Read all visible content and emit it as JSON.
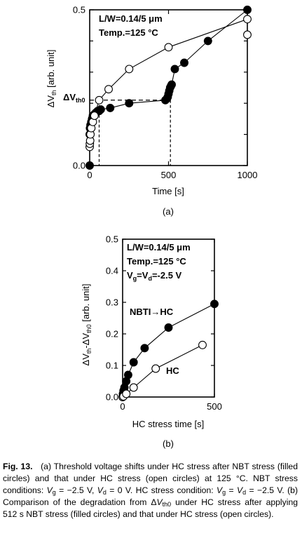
{
  "chart_data": [
    {
      "type": "scatter",
      "panel_label": "(a)",
      "xlabel": "Time [s]",
      "ylabel": "ΔV th [arb. unit]",
      "ylabel_main": "ΔV",
      "ylabel_sub": "th",
      "ylabel_rest": " [arb. unit]",
      "xlim": [
        0,
        1000
      ],
      "ylim": [
        0.0,
        0.5
      ],
      "xticks": [
        "0",
        "500",
        "1000"
      ],
      "yticks": [
        "0.0",
        "0.5"
      ],
      "annotation_line1": "L/W=0.14/5 μm",
      "annotation_line2": "Temp.=125 °C",
      "ref_label_main": "ΔV",
      "ref_label_sub": "th0",
      "ref_level": 0.21,
      "ref_x_open": 60,
      "ref_x_filled": 512,
      "series": [
        {
          "name": "filled",
          "marker": "filled",
          "x": [
            0,
            0,
            2,
            5,
            10,
            15,
            20,
            30,
            40,
            50,
            60,
            70,
            130,
            250,
            480,
            490,
            495,
            500,
            505,
            510,
            515,
            520,
            540,
            600,
            750,
            1000
          ],
          "y": [
            0,
            0.1,
            0.12,
            0.13,
            0.14,
            0.15,
            0.16,
            0.165,
            0.17,
            0.175,
            0.175,
            0.18,
            0.185,
            0.2,
            0.21,
            0.215,
            0.22,
            0.23,
            0.24,
            0.25,
            0.255,
            0.26,
            0.31,
            0.33,
            0.4,
            0.5
          ]
        },
        {
          "name": "open",
          "marker": "open",
          "x": [
            0,
            1,
            3,
            5,
            10,
            20,
            30,
            60,
            120,
            250,
            500,
            1000,
            1000
          ],
          "y": [
            0.06,
            0.07,
            0.08,
            0.1,
            0.12,
            0.14,
            0.16,
            0.21,
            0.245,
            0.31,
            0.38,
            0.47,
            0.42
          ]
        }
      ]
    },
    {
      "type": "scatter",
      "panel_label": "(b)",
      "xlabel": "HC stress time [s]",
      "ylabel": "ΔV th-ΔV th0 [arb. unit]",
      "ylabel_p1": "ΔV",
      "ylabel_s1": "th",
      "ylabel_p2": "-ΔV",
      "ylabel_s2": "th0",
      "ylabel_p3": " [arb. unit]",
      "xlim": [
        0,
        500
      ],
      "ylim": [
        0.0,
        0.5
      ],
      "xticks": [
        "0",
        "500"
      ],
      "yticks": [
        "0.0",
        "0.1",
        "0.2",
        "0.3",
        "0.4",
        "0.5"
      ],
      "annotation_line1": "L/W=0.14/5 μm",
      "annotation_line2": "Temp.=125 °C",
      "annotation_line3_p1": "V",
      "annotation_line3_s1": "g",
      "annotation_line3_p2": "=V",
      "annotation_line3_s2": "d",
      "annotation_line3_p3": "=-2.5 V",
      "series_label_filled": "NBTI→HC",
      "series_label_open": "HC",
      "series": [
        {
          "name": "NBTI→HC",
          "marker": "filled",
          "x": [
            0,
            2,
            5,
            10,
            20,
            30,
            60,
            120,
            250,
            500
          ],
          "y": [
            0,
            0.01,
            0.02,
            0.03,
            0.05,
            0.07,
            0.11,
            0.155,
            0.22,
            0.295
          ]
        },
        {
          "name": "HC",
          "marker": "open",
          "x": [
            0,
            5,
            20,
            60,
            180,
            435
          ],
          "y": [
            0,
            0.002,
            0.01,
            0.03,
            0.09,
            0.165
          ]
        }
      ]
    }
  ],
  "caption": {
    "fig_label": "Fig. 13.",
    "part1": "(a) Threshold voltage shifts under HC stress after NBT stress (filled circles) and that under HC stress (open circles) at 125 °C. NBT stress conditions: ",
    "part2": "V",
    "part3": "g",
    "part4": " = −2.5 V, ",
    "part5": "V",
    "part6": "d",
    "part7": " = 0 V. HC stress condition: ",
    "part8": "V",
    "part9": "g",
    "part10": " = ",
    "part11": "V",
    "part12": "d",
    "part13": " = −2.5 V. (b) Comparison of the degradation from Δ",
    "part14": "V",
    "part15": "th0",
    "part16": " under HC stress after applying 512 s NBT stress (filled circles) and that under HC stress (open circles)."
  }
}
